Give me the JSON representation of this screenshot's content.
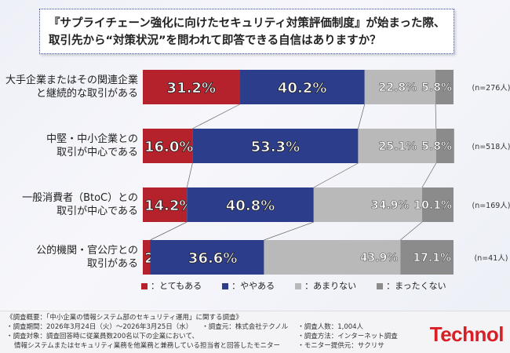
{
  "title": [
    "『サプライチェーン強化に向けたセキュリティ対策評価制度』が始まった際、",
    "取引先から“対策状況”を問われて即答できる自信はありますか？"
  ],
  "chart_data": {
    "type": "bar",
    "orientation": "horizontal-stacked-100",
    "categories": [
      [
        "大手企業またはその関連企業",
        "と継続的な取引がある"
      ],
      [
        "中堅・中小企業との",
        "取引が中心である"
      ],
      [
        "一般消費者（BtoC）との",
        "取引が中心である"
      ],
      [
        "公的機関・官公庁との",
        "取引がある"
      ]
    ],
    "n_labels": [
      "(n=276人)",
      "(n=518人)",
      "(n=169人)",
      "(n=41人)"
    ],
    "series": [
      {
        "name": "とてもある",
        "color": "#b5222b",
        "values": [
          31.2,
          16.0,
          14.2,
          2.4
        ]
      },
      {
        "name": "ややある",
        "color": "#2b3d8b",
        "values": [
          40.2,
          53.3,
          40.8,
          36.6
        ]
      },
      {
        "name": "あまりない",
        "color": "#b9b9b9",
        "values": [
          22.8,
          25.1,
          34.9,
          43.9
        ]
      },
      {
        "name": "まったくない",
        "color": "#8b8b8b",
        "values": [
          5.8,
          5.8,
          10.1,
          17.1
        ]
      }
    ],
    "xlim": [
      0,
      100
    ],
    "legend_position": "bottom"
  },
  "legend_prefix": "■：",
  "footer": {
    "heading": "《調査概要：「中小企業の情報システム部のセキュリティ運用」に関する調査》",
    "period": "・調査期間：2026年3月24日（火）～2026年3月25日（水）",
    "org": "・調査元：株式会社テクノル",
    "count": "・調査人数：1,004人",
    "target1": "・調査対象：調査回答時に従業員数200名以下の企業において、",
    "target2": "情報システムまたはセキュリティ業務を他業務と兼務している担当者と回答したモニター",
    "method": "・調査方法：インターネット調査",
    "provider": "・モニター提供元：サクリサ",
    "logo": "Technol"
  }
}
